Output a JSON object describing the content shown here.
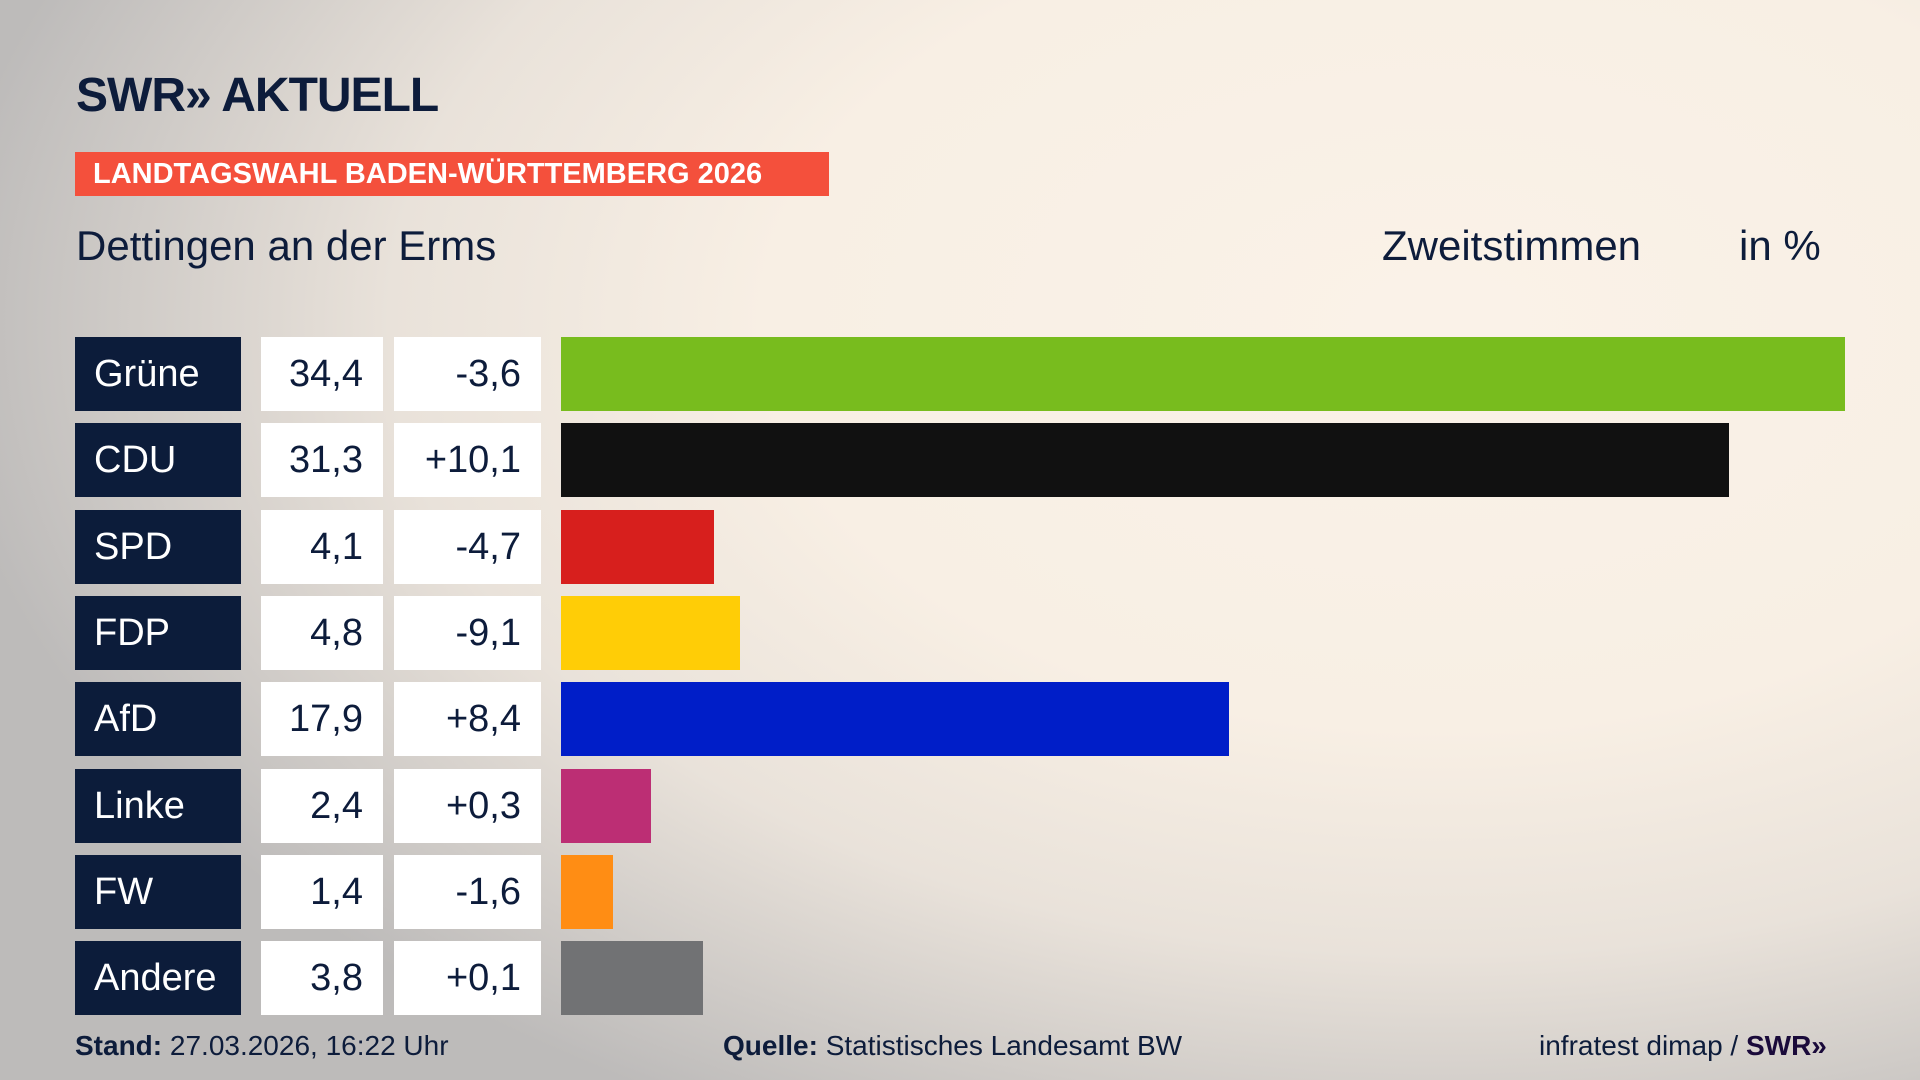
{
  "header": {
    "logo": "SWR» AKTUELL",
    "banner": "LANDTAGSWAHL BADEN-WÜRTTEMBERG 2026",
    "location": "Dettingen an der Erms",
    "vote_type": "Zweitstimmen",
    "unit": "in %"
  },
  "chart_data": {
    "type": "bar",
    "orientation": "horizontal",
    "title": "Dettingen an der Erms",
    "xlabel": "",
    "ylabel": "in %",
    "xlim": [
      0,
      34.4
    ],
    "grid": false,
    "categories": [
      "Grüne",
      "CDU",
      "SPD",
      "FDP",
      "AfD",
      "Linke",
      "FW",
      "Andere"
    ],
    "values": [
      34.4,
      31.3,
      4.1,
      4.8,
      17.9,
      2.4,
      1.4,
      3.8
    ],
    "value_labels": [
      "34,4",
      "31,3",
      "4,1",
      "4,8",
      "17,9",
      "2,4",
      "1,4",
      "3,8"
    ],
    "change": [
      -3.6,
      10.1,
      -4.7,
      -9.1,
      8.4,
      0.3,
      -1.6,
      0.1
    ],
    "change_labels": [
      "-3,6",
      "+10,1",
      "-4,7",
      "-9,1",
      "+8,4",
      "+0,3",
      "-1,6",
      "+0,1"
    ],
    "colors": [
      "#78bc1e",
      "#111111",
      "#d71f1d",
      "#ffcd06",
      "#001ec8",
      "#bc2e74",
      "#ff8d14",
      "#717274"
    ]
  },
  "footer": {
    "stand_label": "Stand:",
    "stand_value": "27.03.2026, 16:22 Uhr",
    "source_label": "Quelle:",
    "source_value": "Statistisches Landesamt BW",
    "credit": "infratest dimap /",
    "credit_logo": "SWR»"
  }
}
